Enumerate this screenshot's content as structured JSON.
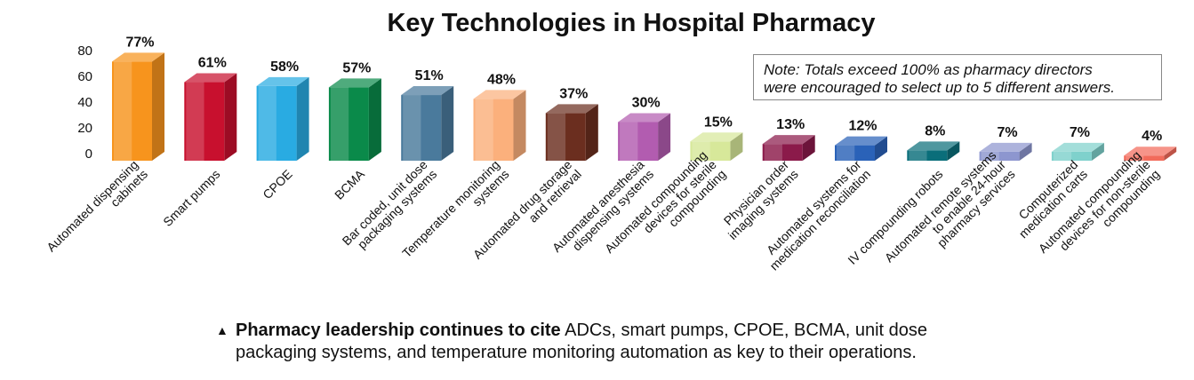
{
  "chart_data": {
    "type": "bar",
    "title": "Key Technologies in Hospital Pharmacy",
    "xlabel": "",
    "ylabel": "",
    "ylim": [
      0,
      80
    ],
    "yticks": [
      0,
      20,
      40,
      60,
      80
    ],
    "grid": false,
    "value_suffix": "%",
    "categories": [
      {
        "label": [
          "Automated dispensing",
          "cabinets"
        ],
        "value": 77,
        "color": "#f7941d"
      },
      {
        "label": [
          "Smart pumps"
        ],
        "value": 61,
        "color": "#c8102e"
      },
      {
        "label": [
          "CPOE"
        ],
        "value": 58,
        "color": "#29abe2"
      },
      {
        "label": [
          "BCMA"
        ],
        "value": 57,
        "color": "#0a8a4a"
      },
      {
        "label": [
          "Bar coded, unit dose",
          "packaging systems"
        ],
        "value": 51,
        "color": "#4a7a9c"
      },
      {
        "label": [
          "Temperature monitoring",
          "systems"
        ],
        "value": 48,
        "color": "#fbb07c"
      },
      {
        "label": [
          "Automated drug storage",
          "and retrieval"
        ],
        "value": 37,
        "color": "#6b2e1f"
      },
      {
        "label": [
          "Automated anesthesia",
          "dispensing systems"
        ],
        "value": 30,
        "color": "#b25cb0"
      },
      {
        "label": [
          "Automated compounding",
          "devices for sterile",
          "compounding"
        ],
        "value": 15,
        "color": "#d7e89a"
      },
      {
        "label": [
          "Physician order",
          "imaging systems"
        ],
        "value": 13,
        "color": "#8b1a4a"
      },
      {
        "label": [
          "Automated systems for",
          "medication reconciliation"
        ],
        "value": 12,
        "color": "#2a62b8"
      },
      {
        "label": [
          "IV compounding robots"
        ],
        "value": 8,
        "color": "#0a6e7a"
      },
      {
        "label": [
          "Automated remote systems",
          "to enable 24-hour",
          "pharmacy services"
        ],
        "value": 7,
        "color": "#8d96cf"
      },
      {
        "label": [
          "Computerized",
          "medication carts"
        ],
        "value": 7,
        "color": "#7fd1cc"
      },
      {
        "label": [
          "Automated compounding",
          "devices for non-sterile",
          "compounding"
        ],
        "value": 4,
        "color": "#f26b5b"
      }
    ],
    "note": [
      "Note: Totals exceed 100% as pharmacy directors",
      "were encouraged to select up to 5 different answers."
    ]
  },
  "caption": {
    "bold": "Pharmacy leadership continues to cite",
    "line1_rest": " ADCs, smart pumps, CPOE, BCMA, unit dose",
    "line2": "packaging systems, and temperature monitoring automation as key to their operations."
  }
}
